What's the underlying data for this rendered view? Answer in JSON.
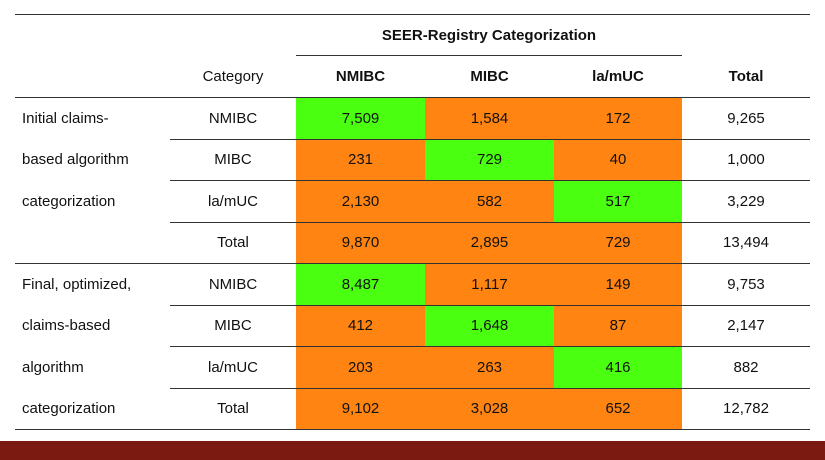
{
  "table": {
    "group_header": "SEER-Registry Categorization",
    "headers": {
      "category": "Category",
      "nmibc": "NMIBC",
      "mibc": "MIBC",
      "lamuc": "la/mUC",
      "total": "Total"
    },
    "sections": [
      {
        "label_lines": [
          "Initial claims-",
          "based algorithm",
          "categorization",
          ""
        ],
        "rows": [
          {
            "category": "NMIBC",
            "nmibc": "7,509",
            "mibc": "1,584",
            "lamuc": "172",
            "total": "9,265"
          },
          {
            "category": "MIBC",
            "nmibc": "231",
            "mibc": "729",
            "lamuc": "40",
            "total": "1,000"
          },
          {
            "category": "la/mUC",
            "nmibc": "2,130",
            "mibc": "582",
            "lamuc": "517",
            "total": "3,229"
          },
          {
            "category": "Total",
            "nmibc": "9,870",
            "mibc": "2,895",
            "lamuc": "729",
            "total": "13,494"
          }
        ]
      },
      {
        "label_lines": [
          "Final, optimized,",
          "claims-based",
          "algorithm",
          "categorization"
        ],
        "rows": [
          {
            "category": "NMIBC",
            "nmibc": "8,487",
            "mibc": "1,117",
            "lamuc": "149",
            "total": "9,753"
          },
          {
            "category": "MIBC",
            "nmibc": "412",
            "mibc": "1,648",
            "lamuc": "87",
            "total": "2,147"
          },
          {
            "category": "la/mUC",
            "nmibc": "203",
            "mibc": "263",
            "lamuc": "416",
            "total": "882"
          },
          {
            "category": "Total",
            "nmibc": "9,102",
            "mibc": "3,028",
            "lamuc": "652",
            "total": "12,782"
          }
        ]
      }
    ]
  },
  "colors": {
    "match": "#4aff10",
    "mismatch": "#ff8412",
    "frame": "#7a1a10"
  }
}
